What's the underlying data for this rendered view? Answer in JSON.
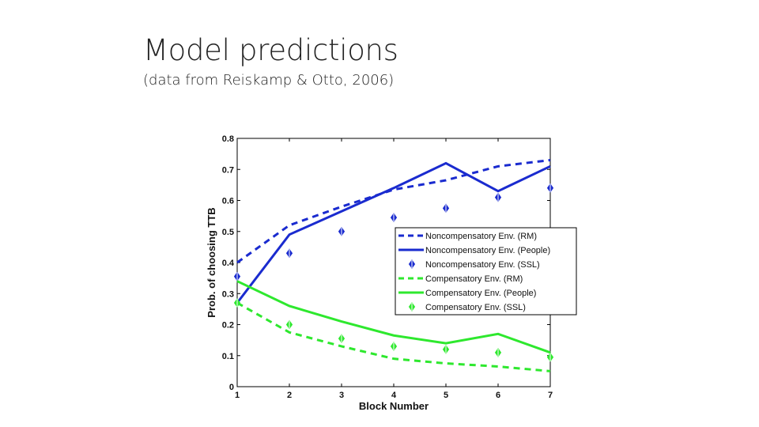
{
  "slide": {
    "title": "Model predictions",
    "subtitle": "(data from Reiskamp & Otto, 2006)"
  },
  "chart_data": {
    "type": "line",
    "xlabel": "Block Number",
    "ylabel": "Prob. of choosing TTB",
    "x": [
      1,
      2,
      3,
      4,
      5,
      6,
      7
    ],
    "xlim": [
      1,
      7
    ],
    "ylim": [
      0,
      0.8
    ],
    "xticks": [
      "1",
      "2",
      "3",
      "4",
      "5",
      "6",
      "7"
    ],
    "yticks": [
      "0",
      "0.1",
      "0.2",
      "0.3",
      "0.4",
      "0.5",
      "0.6",
      "0.7",
      "0.8"
    ],
    "ytick_values": [
      0,
      0.1,
      0.2,
      0.3,
      0.4,
      0.5,
      0.6,
      0.7,
      0.8
    ],
    "grid": false,
    "legend_position": "right",
    "series": [
      {
        "name": "Noncompensatory Env. (RM)",
        "style": "dashed",
        "color": "#1a2bcf",
        "values": [
          0.4,
          0.52,
          0.58,
          0.635,
          0.665,
          0.71,
          0.73
        ]
      },
      {
        "name": "Noncompensatory Env. (People)",
        "style": "solid",
        "color": "#1a2bcf",
        "values": [
          0.27,
          0.49,
          0.565,
          0.64,
          0.72,
          0.63,
          0.71
        ]
      },
      {
        "name": "Noncompensatory Env. (SSL)",
        "style": "marker",
        "color": "#1a2bcf",
        "values": [
          0.355,
          0.43,
          0.5,
          0.545,
          0.575,
          0.61,
          0.64
        ]
      },
      {
        "name": "Compensatory Env. (RM)",
        "style": "dashed",
        "color": "#2ee82e",
        "values": [
          0.27,
          0.175,
          0.13,
          0.09,
          0.075,
          0.065,
          0.05
        ]
      },
      {
        "name": "Compensatory Env. (People)",
        "style": "solid",
        "color": "#2ee82e",
        "values": [
          0.34,
          0.26,
          0.21,
          0.165,
          0.14,
          0.17,
          0.11
        ]
      },
      {
        "name": "Compensatory Env. (SSL)",
        "style": "marker",
        "color": "#2ee82e",
        "values": [
          0.27,
          0.2,
          0.155,
          0.13,
          0.12,
          0.11,
          0.095
        ]
      }
    ]
  }
}
